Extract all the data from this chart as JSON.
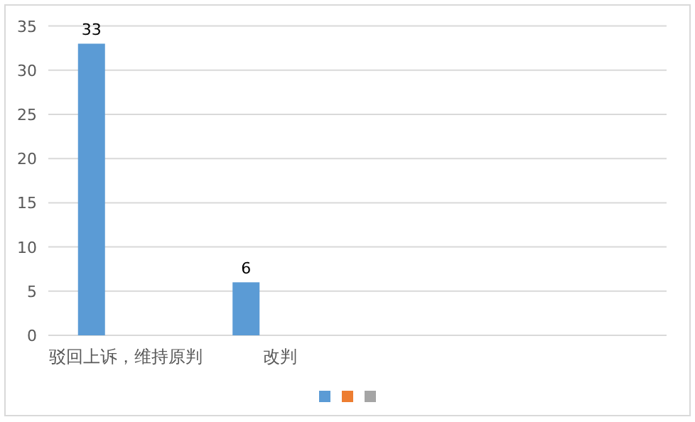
{
  "chart_data": {
    "type": "bar",
    "categories": [
      "驳回上诉，维持原判",
      "改判",
      null,
      null
    ],
    "series": [
      {
        "color": "#5b9bd5",
        "values": [
          33,
          6,
          null,
          null
        ]
      },
      {
        "color": "#ed7d31",
        "values": [
          null,
          null,
          null,
          null
        ]
      },
      {
        "color": "#a5a5a5",
        "values": [
          null,
          null,
          null,
          null
        ]
      }
    ],
    "ylim": [
      0,
      35
    ],
    "yticks": [
      0,
      5,
      10,
      15,
      20,
      25,
      30,
      35
    ],
    "grid": "y",
    "data_labels": true
  }
}
